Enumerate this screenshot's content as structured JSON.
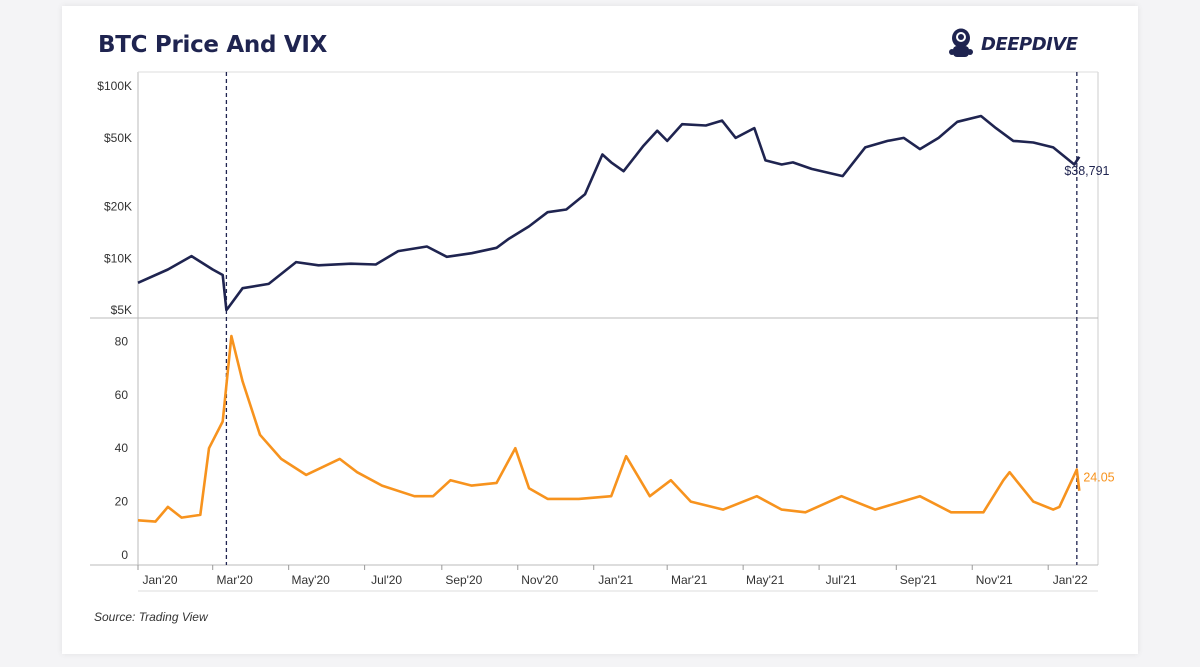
{
  "page": {
    "title": "BTC Price And VIX",
    "brand": "DEEPDIVE",
    "source": "Source: Trading View"
  },
  "colors": {
    "btc": "#1f2450",
    "vix": "#f7931e",
    "axis": "#333333",
    "marker": "#1f2450"
  },
  "icons": {
    "brand_logo": "diver-helmet-icon"
  },
  "chart_data": [
    {
      "type": "line",
      "name": "BTC price",
      "scale": "log",
      "ylim": [
        4500,
        100000
      ],
      "yticks": [
        5000,
        10000,
        20000,
        50000,
        100000
      ],
      "yticklabels": [
        "$5K",
        "$10K",
        "$20K",
        "$50K",
        "$100K"
      ],
      "end_label": "$38,791",
      "x": [
        "2020-01-01",
        "2020-01-25",
        "2020-02-13",
        "2020-03-01",
        "2020-03-09",
        "2020-03-12",
        "2020-03-13",
        "2020-03-25",
        "2020-04-15",
        "2020-05-07",
        "2020-05-25",
        "2020-06-20",
        "2020-07-10",
        "2020-07-28",
        "2020-08-20",
        "2020-09-05",
        "2020-09-25",
        "2020-10-15",
        "2020-10-25",
        "2020-11-10",
        "2020-11-25",
        "2020-12-10",
        "2020-12-25",
        "2021-01-08",
        "2021-01-15",
        "2021-01-25",
        "2021-02-10",
        "2021-02-21",
        "2021-03-01",
        "2021-03-13",
        "2021-04-01",
        "2021-04-14",
        "2021-04-25",
        "2021-05-10",
        "2021-05-19",
        "2021-06-01",
        "2021-06-10",
        "2021-06-25",
        "2021-07-20",
        "2021-08-07",
        "2021-08-25",
        "2021-09-07",
        "2021-09-20",
        "2021-10-05",
        "2021-10-20",
        "2021-11-08",
        "2021-11-20",
        "2021-12-04",
        "2021-12-20",
        "2022-01-05",
        "2022-01-22",
        "2022-01-26"
      ],
      "y": [
        7200,
        8600,
        10300,
        8600,
        8000,
        5000,
        5100,
        6700,
        7100,
        9500,
        9100,
        9300,
        9200,
        11000,
        11700,
        10200,
        10700,
        11500,
        13000,
        15300,
        18500,
        19200,
        23500,
        40000,
        36000,
        32000,
        45000,
        55000,
        48000,
        60000,
        59000,
        63000,
        50000,
        57000,
        37000,
        35000,
        36000,
        33000,
        30000,
        44000,
        48000,
        50000,
        43000,
        50000,
        62000,
        67000,
        57000,
        48000,
        47000,
        44000,
        35000,
        38791
      ]
    },
    {
      "type": "line",
      "name": "VIX",
      "ylim": [
        0,
        85
      ],
      "yticks": [
        0,
        20,
        40,
        60,
        80
      ],
      "yticklabels": [
        "0",
        "20",
        "40",
        "60",
        "80"
      ],
      "end_label": "24.05",
      "x": [
        "2020-01-01",
        "2020-01-15",
        "2020-01-25",
        "2020-02-05",
        "2020-02-20",
        "2020-02-27",
        "2020-03-09",
        "2020-03-16",
        "2020-03-25",
        "2020-04-08",
        "2020-04-25",
        "2020-05-15",
        "2020-06-11",
        "2020-06-25",
        "2020-07-15",
        "2020-08-10",
        "2020-08-25",
        "2020-09-08",
        "2020-09-25",
        "2020-10-15",
        "2020-10-30",
        "2020-11-10",
        "2020-11-25",
        "2020-12-20",
        "2021-01-15",
        "2021-01-27",
        "2021-02-15",
        "2021-03-04",
        "2021-03-20",
        "2021-04-15",
        "2021-05-12",
        "2021-06-01",
        "2021-06-20",
        "2021-07-19",
        "2021-08-15",
        "2021-09-20",
        "2021-10-15",
        "2021-11-10",
        "2021-11-26",
        "2021-12-01",
        "2021-12-20",
        "2022-01-05",
        "2022-01-10",
        "2022-01-24",
        "2022-01-26"
      ],
      "y": [
        13,
        12.5,
        18,
        14,
        15,
        40,
        50,
        82,
        65,
        45,
        36,
        30,
        36,
        31,
        26,
        22,
        22,
        28,
        26,
        27,
        40,
        25,
        21,
        21,
        22,
        37,
        22,
        28,
        20,
        17,
        22,
        17,
        16,
        22,
        17,
        22,
        16,
        16,
        28,
        31,
        20,
        17,
        18,
        32,
        24.05
      ]
    }
  ],
  "x_axis": {
    "ticklabels": [
      "Jan'20",
      "Mar'20",
      "May'20",
      "Jul'20",
      "Sep'20",
      "Nov'20",
      "Jan'21",
      "Mar'21",
      "May'21",
      "Jul'21",
      "Sep'21",
      "Nov'21",
      "Jan'22"
    ],
    "tickdates": [
      "2020-01-01",
      "2020-03-01",
      "2020-05-01",
      "2020-07-01",
      "2020-09-01",
      "2020-11-01",
      "2021-01-01",
      "2021-03-01",
      "2021-05-01",
      "2021-07-01",
      "2021-09-01",
      "2021-11-01",
      "2022-01-01"
    ],
    "range": [
      "2020-01-01",
      "2022-02-10"
    ],
    "reference_lines": [
      "2020-03-12",
      "2022-01-24"
    ]
  }
}
